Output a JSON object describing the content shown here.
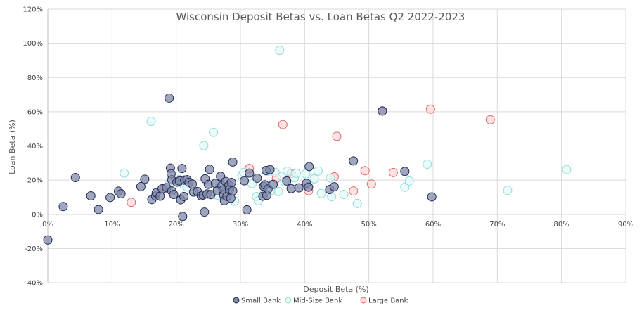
{
  "chart_data": {
    "type": "scatter",
    "title": "Wisconsin Deposit Betas vs. Loan Betas Q2 2022-2023",
    "xlabel": "Deposit Beta (%)",
    "ylabel": "Loan Beta (%)",
    "xlim": [
      0,
      90
    ],
    "ylim": [
      -40,
      120
    ],
    "x_ticks": [
      "0%",
      "10%",
      "20%",
      "30%",
      "40%",
      "50%",
      "60%",
      "70%",
      "80%",
      "90%"
    ],
    "y_ticks": [
      "-40%",
      "-20%",
      "0%",
      "20%",
      "40%",
      "60%",
      "80%",
      "100%",
      "120%"
    ],
    "grid": true,
    "legend_position": "bottom",
    "series": [
      {
        "name": "Small Bank",
        "color": "#1f2a55",
        "fill": "#8088a8",
        "points": [
          [
            0,
            -15
          ],
          [
            2.4,
            4.5
          ],
          [
            4.3,
            21.5
          ],
          [
            6.7,
            10.8
          ],
          [
            7.9,
            2.8
          ],
          [
            9.7,
            9.8
          ],
          [
            11,
            13.5
          ],
          [
            11.4,
            12
          ],
          [
            15.1,
            20.5
          ],
          [
            14.5,
            16.2
          ],
          [
            16.2,
            8.6
          ],
          [
            16.8,
            10.7
          ],
          [
            16.9,
            12.6
          ],
          [
            17.5,
            10.6
          ],
          [
            17.8,
            14.9
          ],
          [
            18.5,
            15.6
          ],
          [
            18.9,
            68
          ],
          [
            19.1,
            27
          ],
          [
            19.2,
            23.7
          ],
          [
            19.3,
            20.1
          ],
          [
            19.3,
            13.6
          ],
          [
            19.6,
            11.6
          ],
          [
            20.1,
            18.8
          ],
          [
            20.5,
            19.5
          ],
          [
            20.7,
            8.5
          ],
          [
            20.9,
            26.8
          ],
          [
            21,
            -1.3
          ],
          [
            21.2,
            10.4
          ],
          [
            21.3,
            20
          ],
          [
            21.7,
            20.2
          ],
          [
            22,
            18.7
          ],
          [
            22.5,
            17.7
          ],
          [
            22.7,
            13
          ],
          [
            23.3,
            13.3
          ],
          [
            23.9,
            10.8
          ],
          [
            24.2,
            11.3
          ],
          [
            24.4,
            1.3
          ],
          [
            24.5,
            20.7
          ],
          [
            24.8,
            11.9
          ],
          [
            25,
            17.5
          ],
          [
            25.2,
            26.3
          ],
          [
            25.4,
            11.5
          ],
          [
            26.1,
            18.1
          ],
          [
            26.4,
            13.7
          ],
          [
            26.9,
            22.2
          ],
          [
            27.1,
            16.6
          ],
          [
            27.3,
            14.2
          ],
          [
            27.4,
            11.3
          ],
          [
            27.5,
            8
          ],
          [
            27.7,
            19.2
          ],
          [
            27.9,
            10.5
          ],
          [
            28.2,
            17
          ],
          [
            28.3,
            14.4
          ],
          [
            28.5,
            9.4
          ],
          [
            28.6,
            18.6
          ],
          [
            28.8,
            30.6
          ],
          [
            28.8,
            13.7
          ],
          [
            30.6,
            19.6
          ],
          [
            31,
            2.6
          ],
          [
            31.4,
            24.1
          ],
          [
            32.6,
            21.1
          ],
          [
            33.5,
            10.6
          ],
          [
            33.6,
            16.4
          ],
          [
            33.8,
            17.2
          ],
          [
            34,
            25.6
          ],
          [
            34.1,
            11.1
          ],
          [
            34.3,
            14.8
          ],
          [
            34.6,
            26.1
          ],
          [
            35.1,
            17.5
          ],
          [
            37.2,
            19.5
          ],
          [
            37.9,
            15
          ],
          [
            39.1,
            15.5
          ],
          [
            40.3,
            18.1
          ],
          [
            40.6,
            15.9
          ],
          [
            40.7,
            27.9
          ],
          [
            43.9,
            14.5
          ],
          [
            44.6,
            16.1
          ],
          [
            47.6,
            31.2
          ],
          [
            52.1,
            60.4
          ],
          [
            55.6,
            25.1
          ],
          [
            59.8,
            10.2
          ]
        ]
      },
      {
        "name": "Mid-Size Bank",
        "color": "#8ddcd8",
        "fill": "#e6f8f7",
        "points": [
          [
            11.9,
            24.1
          ],
          [
            16.1,
            54.4
          ],
          [
            19,
            18.2
          ],
          [
            20.5,
            20.3
          ],
          [
            21.1,
            17.6
          ],
          [
            21.4,
            18.1
          ],
          [
            21.7,
            16
          ],
          [
            24.3,
            40.2
          ],
          [
            25.8,
            47.9
          ],
          [
            26.4,
            11.2
          ],
          [
            26.8,
            16.6
          ],
          [
            27.3,
            12.1
          ],
          [
            27.6,
            14.1
          ],
          [
            28.1,
            15.3
          ],
          [
            28.2,
            11.4
          ],
          [
            29.1,
            7.7
          ],
          [
            30.2,
            22.8
          ],
          [
            30.5,
            24.5
          ],
          [
            31.8,
            17.9
          ],
          [
            32.5,
            10.4
          ],
          [
            32.8,
            7.9
          ],
          [
            33.7,
            12.2
          ],
          [
            34.2,
            25
          ],
          [
            34.8,
            14
          ],
          [
            35.4,
            24.5
          ],
          [
            35.9,
            13.3
          ],
          [
            36.1,
            95.9
          ],
          [
            36.5,
            22.2
          ],
          [
            36.9,
            19.1
          ],
          [
            37.3,
            25.2
          ],
          [
            38.4,
            21.3
          ],
          [
            38.7,
            24
          ],
          [
            40.2,
            23.7
          ],
          [
            40.8,
            17.3
          ],
          [
            41.5,
            20.7
          ],
          [
            42.1,
            25.3
          ],
          [
            42.6,
            12.2
          ],
          [
            44,
            21.2
          ],
          [
            44.2,
            10.3
          ],
          [
            46.1,
            11.6
          ],
          [
            48.2,
            6.3
          ],
          [
            55.6,
            15.8
          ],
          [
            56.3,
            19.5
          ],
          [
            59.1,
            29.3
          ],
          [
            71.6,
            14
          ],
          [
            80.8,
            26.2
          ]
        ]
      },
      {
        "name": "Large Bank",
        "color": "#e06666",
        "fill": "#fbdada",
        "points": [
          [
            13,
            7
          ],
          [
            18.2,
            15.2
          ],
          [
            31.4,
            26.8
          ],
          [
            35.6,
            21
          ],
          [
            36.6,
            52.5
          ],
          [
            37.9,
            23.9
          ],
          [
            40.6,
            13.8
          ],
          [
            44.6,
            21.9
          ],
          [
            45,
            45.6
          ],
          [
            47.6,
            13.6
          ],
          [
            49.4,
            25.5
          ],
          [
            50.4,
            17.7
          ],
          [
            52.1,
            60.4
          ],
          [
            53.8,
            24.4
          ],
          [
            59.6,
            61.5
          ],
          [
            68.9,
            55.3
          ]
        ]
      }
    ]
  }
}
